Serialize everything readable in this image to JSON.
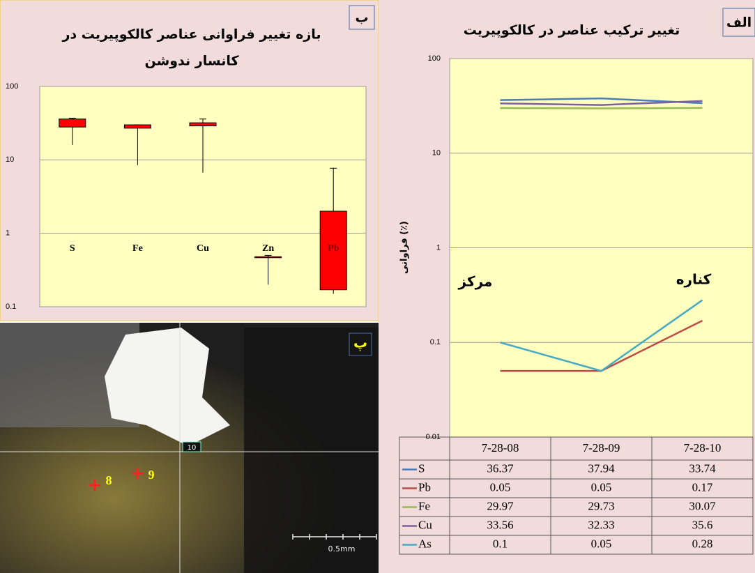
{
  "chart_data": [
    {
      "type": "box",
      "panel_label": "ب",
      "title": [
        "بازه تغییر فراوانی عناصر کالکوپیریت در",
        "کانسار ندوشن"
      ],
      "categories": [
        "S",
        "Fe",
        "Cu",
        "Zn",
        "Pb"
      ],
      "min": [
        16,
        8.5,
        6.7,
        0.2,
        0.15
      ],
      "low": [
        28,
        27,
        29,
        0.47,
        0.17
      ],
      "high": [
        36,
        30,
        32,
        0.48,
        2
      ],
      "max": [
        37,
        30,
        36,
        0.5,
        7.7
      ],
      "color": "#ff0000",
      "log": true,
      "grid": true,
      "ylim": [
        0.1,
        100
      ],
      "yticks": [
        0.1,
        1,
        10,
        100
      ]
    },
    {
      "type": "line",
      "panel_label": "الف",
      "title": "تغییر ترکیب عناصر در کالکوپیریت",
      "y_label": "فراوانی (٪)",
      "annotations": [
        "مرکز",
        "کناره"
      ],
      "categories": [
        "7-28-08",
        "7-28-09",
        "7-28-10"
      ],
      "series": [
        {
          "name": "S",
          "color": "#4a7ebb",
          "values": [
            36.37,
            37.94,
            33.74
          ]
        },
        {
          "name": "Pb",
          "color": "#be4b48",
          "values": [
            0.05,
            0.05,
            0.17
          ]
        },
        {
          "name": "Fe",
          "color": "#98b954",
          "values": [
            29.97,
            29.73,
            30.07
          ]
        },
        {
          "name": "Cu",
          "color": "#7d60a0",
          "values": [
            33.56,
            32.33,
            35.6
          ]
        },
        {
          "name": "As",
          "color": "#46aac5",
          "values": [
            0.1,
            0.05,
            0.28
          ]
        }
      ],
      "log": true,
      "grid": true,
      "ylim": [
        0.01,
        100
      ],
      "yticks": [
        0.01,
        0.1,
        1,
        10,
        100
      ]
    }
  ],
  "photo": {
    "panel_label": "پ",
    "points": [
      "8",
      "9",
      "10"
    ],
    "scale": "0.5mm"
  }
}
